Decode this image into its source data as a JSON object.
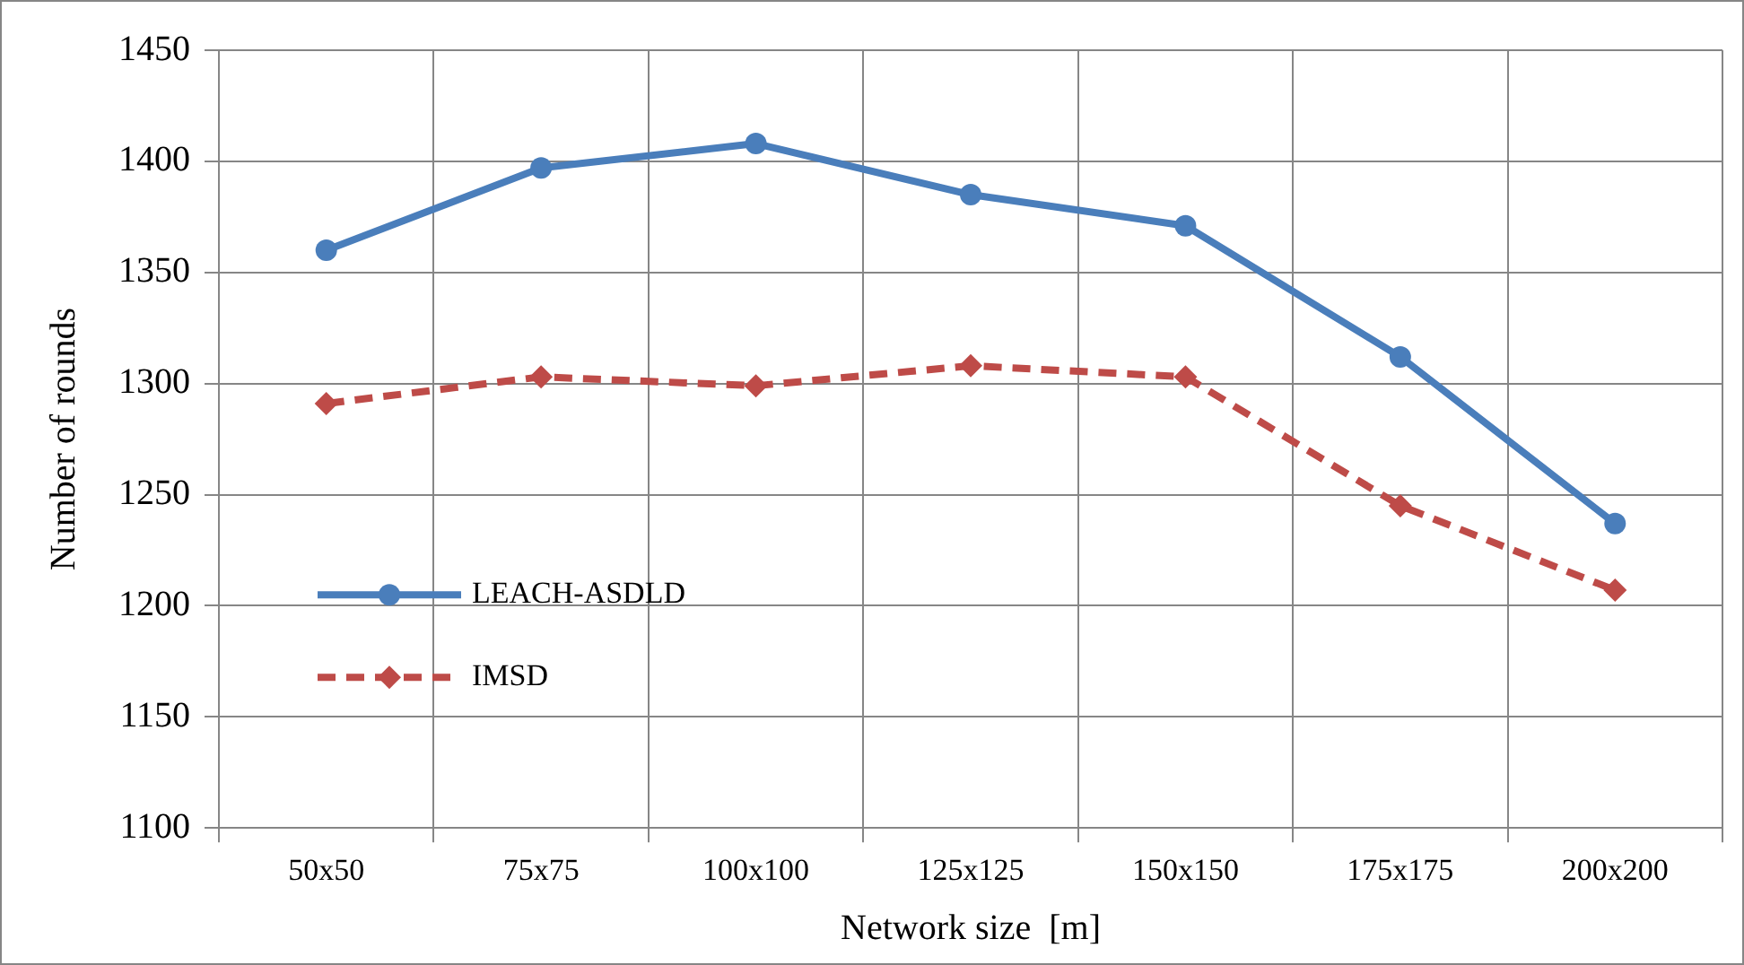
{
  "chart_data": {
    "type": "line",
    "xlabel": "Network size  [m]",
    "ylabel": "Number of rounds",
    "categories": [
      "50x50",
      "75x75",
      "100x100",
      "125x125",
      "150x150",
      "175x175",
      "200x200"
    ],
    "series": [
      {
        "name": "LEACH-ASDLD",
        "color": "#4a7ebb",
        "marker": "circle",
        "line_style": "solid",
        "values": [
          1360,
          1397,
          1408,
          1385,
          1371,
          1312,
          1237
        ]
      },
      {
        "name": "IMSD",
        "color": "#be4b48",
        "marker": "diamond",
        "line_style": "dashed",
        "values": [
          1291,
          1303,
          1299,
          1308,
          1303,
          1245,
          1207
        ]
      }
    ],
    "ylim": [
      1100,
      1450
    ],
    "yticks": [
      1100,
      1150,
      1200,
      1250,
      1300,
      1350,
      1400,
      1450
    ],
    "grid": true,
    "legend": "bottom left"
  }
}
